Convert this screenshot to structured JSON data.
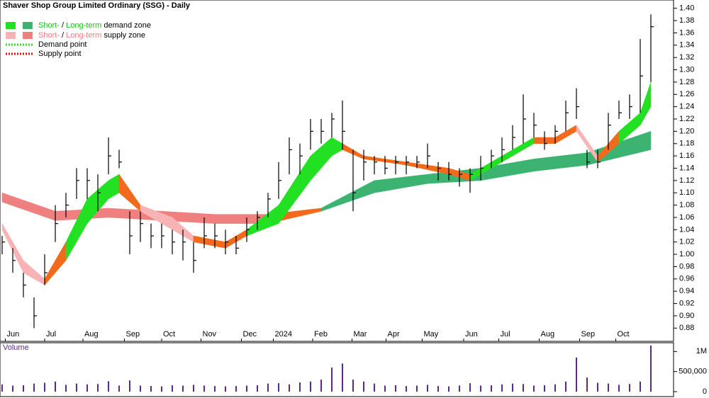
{
  "chart_data": {
    "type": "ohlc",
    "title": "Shaver Shop Group Limited Ordinary (SSG) - Daily",
    "legend": [
      [
        "Short-",
        " / ",
        "Long-term",
        " demand zone"
      ],
      [
        "Short-",
        " / ",
        "Long-term",
        " supply zone"
      ],
      [
        "Demand point"
      ],
      [
        "Supply point"
      ]
    ],
    "xticks": [
      {
        "value": 0.3,
        "label": "Jun"
      },
      {
        "value": 4,
        "label": "Jul"
      },
      {
        "value": 7.6,
        "label": "Aug"
      },
      {
        "value": 11.5,
        "label": "Sep"
      },
      {
        "value": 15,
        "label": "Oct"
      },
      {
        "value": 18.7,
        "label": "Nov"
      },
      {
        "value": 22.5,
        "label": "Dec"
      },
      {
        "value": 25.5,
        "label": "2024"
      },
      {
        "value": 29.2,
        "label": "Feb"
      },
      {
        "value": 32.9,
        "label": "Mar"
      },
      {
        "value": 36.1,
        "label": "Apr"
      },
      {
        "value": 39.5,
        "label": "May"
      },
      {
        "value": 43.4,
        "label": "Jun"
      },
      {
        "value": 46.7,
        "label": "Jul"
      },
      {
        "value": 50.5,
        "label": "Aug"
      },
      {
        "value": 54.3,
        "label": "Sep"
      },
      {
        "value": 57.7,
        "label": "Oct"
      }
    ],
    "ylim": [
      0.87,
      1.41
    ],
    "yticks": [
      {
        "value": 0.88,
        "label": "0.88"
      },
      {
        "value": 0.9,
        "label": "0.90"
      },
      0.92,
      0.94,
      0.96,
      0.98,
      {
        "value": 1.0,
        "label": "1.00"
      },
      1.02,
      1.04,
      1.06,
      1.08,
      {
        "value": 1.1,
        "label": "1.10"
      },
      1.12,
      1.14,
      1.16,
      1.18,
      {
        "value": 1.2,
        "label": "1.20"
      },
      1.22,
      1.24,
      1.26,
      1.28,
      {
        "value": 1.3,
        "label": "1.30"
      },
      1.32,
      1.34,
      1.36,
      1.38,
      {
        "value": 1.4,
        "label": "1.40"
      }
    ],
    "high": [
      1.03,
      1.01,
      0.97,
      0.93,
      1.0,
      1.08,
      1.1,
      1.14,
      1.14,
      1.13,
      1.19,
      1.17,
      1.07,
      1.07,
      1.05,
      1.05,
      1.04,
      1.04,
      1.02,
      1.06,
      1.05,
      1.04,
      1.03,
      1.06,
      1.07,
      1.1,
      1.15,
      1.19,
      1.18,
      1.22,
      1.22,
      1.23,
      1.25,
      1.17,
      1.17,
      1.16,
      1.16,
      1.16,
      1.16,
      1.16,
      1.18,
      1.15,
      1.15,
      1.14,
      1.14,
      1.16,
      1.17,
      1.19,
      1.21,
      1.26,
      1.23,
      1.2,
      1.21,
      1.25,
      1.27,
      1.17,
      1.17,
      1.23,
      1.25,
      1.26,
      1.35,
      1.39
    ],
    "low": [
      1.0,
      0.97,
      0.93,
      0.88,
      0.95,
      1.02,
      1.06,
      1.09,
      1.09,
      1.07,
      1.13,
      1.14,
      1.0,
      1.02,
      1.01,
      1.01,
      1.0,
      0.99,
      0.97,
      1.01,
      1.01,
      1.0,
      1.0,
      1.02,
      1.04,
      1.06,
      1.09,
      1.13,
      1.13,
      1.17,
      1.18,
      1.19,
      1.17,
      1.07,
      1.12,
      1.13,
      1.13,
      1.13,
      1.13,
      1.14,
      1.14,
      1.12,
      1.12,
      1.11,
      1.1,
      1.12,
      1.14,
      1.15,
      1.17,
      1.18,
      1.19,
      1.17,
      1.18,
      1.2,
      1.22,
      1.14,
      1.14,
      1.17,
      1.22,
      1.22,
      1.23,
      1.28
    ],
    "close": [
      1.02,
      0.99,
      0.95,
      0.9,
      0.97,
      1.05,
      1.08,
      1.12,
      1.12,
      1.1,
      1.16,
      1.15,
      1.03,
      1.05,
      1.03,
      1.03,
      1.02,
      1.02,
      0.99,
      1.03,
      1.03,
      1.02,
      1.01,
      1.04,
      1.06,
      1.09,
      1.12,
      1.17,
      1.16,
      1.2,
      1.2,
      1.22,
      1.2,
      1.1,
      1.15,
      1.15,
      1.14,
      1.15,
      1.15,
      1.15,
      1.16,
      1.14,
      1.13,
      1.13,
      1.13,
      1.14,
      1.16,
      1.17,
      1.19,
      1.22,
      1.21,
      1.18,
      1.2,
      1.23,
      1.24,
      1.15,
      1.15,
      1.21,
      1.23,
      1.24,
      1.29,
      1.37
    ],
    "long_zone": {
      "x": [
        0,
        5,
        10,
        15,
        20,
        25,
        30,
        35,
        40,
        45,
        50,
        55,
        61
      ],
      "upper": [
        1.1,
        1.07,
        1.075,
        1.07,
        1.065,
        1.065,
        1.075,
        1.12,
        1.13,
        1.14,
        1.155,
        1.165,
        1.2
      ],
      "lower": [
        1.085,
        1.055,
        1.06,
        1.055,
        1.05,
        1.05,
        1.07,
        1.1,
        1.115,
        1.12,
        1.135,
        1.145,
        1.17
      ],
      "colors": [
        "#f08080",
        "#f08080",
        "#f08080",
        "#f08080",
        "#f08080",
        "#f26b1d",
        "#3cb371",
        "#3cb371",
        "#3cb371",
        "#3cb371",
        "#3cb371",
        "#3cb371",
        "#3cb371"
      ]
    },
    "short_zone": {
      "x": [
        0,
        2,
        4,
        6,
        8,
        10,
        11,
        13,
        16,
        18,
        21,
        23,
        26,
        29,
        31,
        32,
        34,
        38,
        42,
        44,
        47,
        50,
        52,
        54,
        56,
        58,
        60,
        61
      ],
      "upper": [
        1.05,
        0.99,
        0.96,
        1.02,
        1.09,
        1.12,
        1.13,
        1.08,
        1.06,
        1.03,
        1.02,
        1.04,
        1.08,
        1.16,
        1.19,
        1.18,
        1.16,
        1.15,
        1.14,
        1.13,
        1.16,
        1.19,
        1.19,
        1.21,
        1.16,
        1.2,
        1.23,
        1.28
      ],
      "lower": [
        1.04,
        0.97,
        0.95,
        0.99,
        1.05,
        1.09,
        1.1,
        1.07,
        1.04,
        1.02,
        1.01,
        1.03,
        1.05,
        1.12,
        1.16,
        1.17,
        1.155,
        1.145,
        1.13,
        1.12,
        1.15,
        1.18,
        1.18,
        1.2,
        1.15,
        1.18,
        1.21,
        1.24
      ],
      "colors": [
        "#f8b4b4",
        "#f8b4b4",
        "#f26b1d",
        "#22e022",
        "#22e022",
        "#22e022",
        "#f26b1d",
        "#f8b4b4",
        "#f8b4b4",
        "#f26b1d",
        "#f26b1d",
        "#22e022",
        "#22e022",
        "#22e022",
        "#22e022",
        "#f26b1d",
        "#f26b1d",
        "#f26b1d",
        "#f26b1d",
        "#22e022",
        "#22e022",
        "#f26b1d",
        "#f26b1d",
        "#f8b4b4",
        "#f26b1d",
        "#22e022",
        "#22e022",
        "#22e022"
      ]
    },
    "volume_label": "Volume",
    "volume": [
      180000,
      150000,
      160000,
      200000,
      220000,
      250000,
      170000,
      200000,
      180000,
      190000,
      260000,
      150000,
      280000,
      150000,
      140000,
      130000,
      160000,
      150000,
      170000,
      150000,
      140000,
      130000,
      140000,
      150000,
      160000,
      200000,
      210000,
      180000,
      230000,
      250000,
      300000,
      600000,
      700000,
      300000,
      250000,
      200000,
      150000,
      160000,
      140000,
      150000,
      170000,
      140000,
      130000,
      150000,
      210000,
      150000,
      160000,
      180000,
      200000,
      190000,
      150000,
      160000,
      180000,
      250000,
      850000,
      350000,
      220000,
      200000,
      170000,
      190000,
      250000,
      1150000
    ],
    "vlim": [
      0,
      1200000
    ],
    "vticks": [
      0,
      {
        "value": 500000,
        "label": "500,000"
      },
      {
        "value": 1000000,
        "label": "1M"
      }
    ]
  }
}
